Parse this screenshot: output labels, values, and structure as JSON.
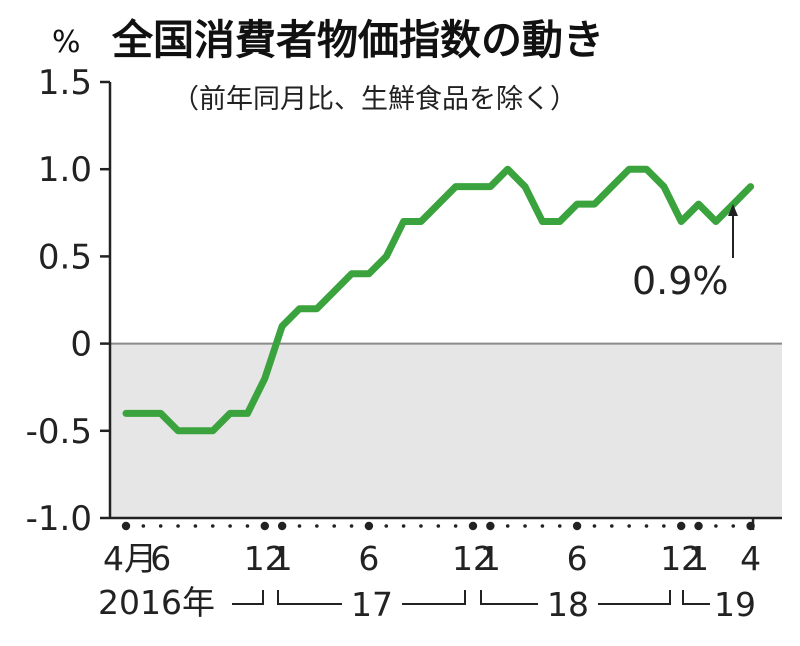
{
  "chart_data": {
    "type": "line",
    "title": "全国消費者物価指数の動き",
    "subtitle": "（前年同月比、生鮮食品を除く）",
    "unit": "%",
    "ylim": [
      -1.0,
      1.5
    ],
    "yticks": [
      "1.5",
      "1.0",
      "0.5",
      "0",
      "-0.5",
      "-1.0"
    ],
    "x": [
      "2016-04",
      "2016-05",
      "2016-06",
      "2016-07",
      "2016-08",
      "2016-09",
      "2016-10",
      "2016-11",
      "2016-12",
      "2017-01",
      "2017-02",
      "2017-03",
      "2017-04",
      "2017-05",
      "2017-06",
      "2017-07",
      "2017-08",
      "2017-09",
      "2017-10",
      "2017-11",
      "2017-12",
      "2018-01",
      "2018-02",
      "2018-03",
      "2018-04",
      "2018-05",
      "2018-06",
      "2018-07",
      "2018-08",
      "2018-09",
      "2018-10",
      "2018-11",
      "2018-12",
      "2019-01",
      "2019-02",
      "2019-03",
      "2019-04"
    ],
    "series": [
      {
        "color": "#3aa33d",
        "values": [
          -0.4,
          -0.4,
          -0.4,
          -0.5,
          -0.5,
          -0.5,
          -0.4,
          -0.4,
          -0.2,
          0.1,
          0.2,
          0.2,
          0.3,
          0.4,
          0.4,
          0.5,
          0.7,
          0.7,
          0.8,
          0.9,
          0.9,
          0.9,
          1.0,
          0.9,
          0.7,
          0.7,
          0.8,
          0.8,
          0.9,
          1.0,
          1.0,
          0.9,
          0.7,
          0.8,
          0.7,
          0.8,
          0.9
        ]
      }
    ],
    "xtick_labels": [
      {
        "month": "2016-04",
        "label": "4月"
      },
      {
        "month": "2016-06",
        "label": "6"
      },
      {
        "month": "2016-12",
        "label": "12"
      },
      {
        "month": "2017-01",
        "label": "1"
      },
      {
        "month": "2017-06",
        "label": "6"
      },
      {
        "month": "2017-12",
        "label": "12"
      },
      {
        "month": "2018-01",
        "label": "1"
      },
      {
        "month": "2018-06",
        "label": "6"
      },
      {
        "month": "2018-12",
        "label": "12"
      },
      {
        "month": "2019-01",
        "label": "1"
      },
      {
        "month": "2019-04",
        "label": "4"
      }
    ],
    "year_labels": [
      "2016年",
      "17",
      "18",
      "19"
    ],
    "annotation": "0.9%",
    "negative_region_color": "#e6e6e6",
    "zero_line_color": "#8a8a8a"
  }
}
